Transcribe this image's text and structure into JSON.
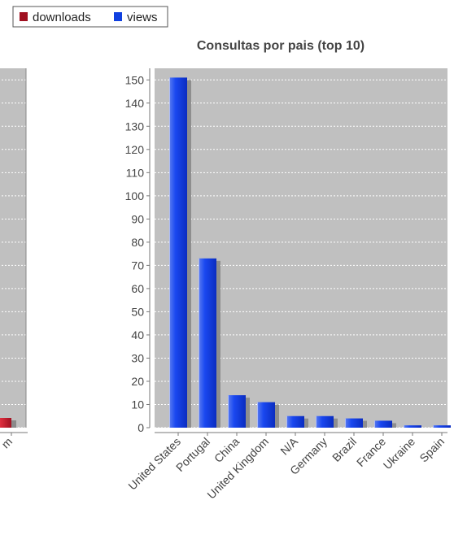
{
  "legend": {
    "items": [
      {
        "label": "downloads",
        "color": "#a01020"
      },
      {
        "label": "views",
        "color": "#1040e0"
      }
    ],
    "position": "top"
  },
  "left_chart_partial": {
    "visible_bar": {
      "series": "downloads",
      "label_fragment": "m"
    }
  },
  "chart_data": {
    "type": "bar",
    "title": "Consultas por pais (top 10)",
    "xlabel": "",
    "ylabel": "",
    "categories": [
      "United States",
      "Portugal",
      "China",
      "United Kingdom",
      "N/A",
      "Germany",
      "Brazil",
      "France",
      "Ukraine",
      "Spain"
    ],
    "series": [
      {
        "name": "views",
        "values": [
          151,
          73,
          14,
          11,
          5,
          5,
          4,
          3,
          1,
          1
        ],
        "color": "#1040e0"
      }
    ],
    "ylim": [
      0,
      155
    ],
    "yticks": [
      0,
      10,
      20,
      30,
      40,
      50,
      60,
      70,
      80,
      90,
      100,
      110,
      120,
      130,
      140,
      150
    ],
    "grid": true,
    "plot_background": "#c0c0c0",
    "gridline_color": "#ffffff",
    "tick_label_color": "#444444"
  }
}
